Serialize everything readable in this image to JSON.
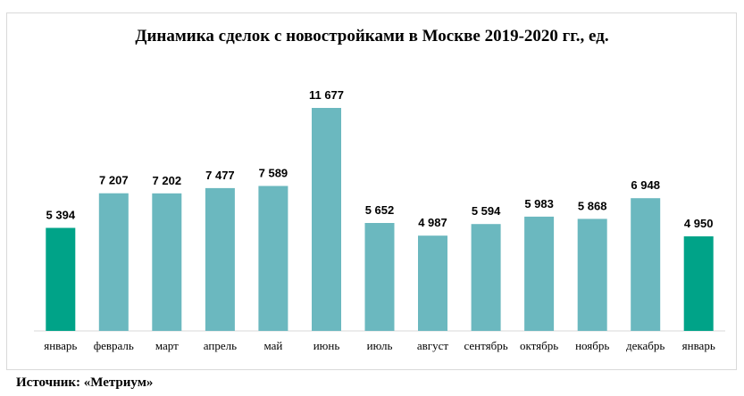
{
  "chart_data": {
    "type": "bar",
    "title": "Динамика сделок с новостройками в Москве 2019-2020 гг., ед.",
    "categories": [
      "январь",
      "февраль",
      "март",
      "апрель",
      "май",
      "июнь",
      "июль",
      "август",
      "сентябрь",
      "октябрь",
      "ноябрь",
      "декабрь",
      "январь"
    ],
    "values": [
      5394,
      7207,
      7202,
      7477,
      7589,
      11677,
      5652,
      4987,
      5594,
      5983,
      5868,
      6948,
      4950
    ],
    "value_labels": [
      "5 394",
      "7 207",
      "7 202",
      "7 477",
      "7 589",
      "11 677",
      "5 652",
      "4 987",
      "5 594",
      "5 983",
      "5 868",
      "6 948",
      "4 950"
    ],
    "bar_colors": [
      "#00a388",
      "#6bb8bf",
      "#6bb8bf",
      "#6bb8bf",
      "#6bb8bf",
      "#6bb8bf",
      "#6bb8bf",
      "#6bb8bf",
      "#6bb8bf",
      "#6bb8bf",
      "#6bb8bf",
      "#6bb8bf",
      "#00a388"
    ],
    "ylim": [
      0,
      11677
    ],
    "xlabel": "",
    "ylabel": "",
    "grid": false
  },
  "source": "Источник: «Метриум»"
}
